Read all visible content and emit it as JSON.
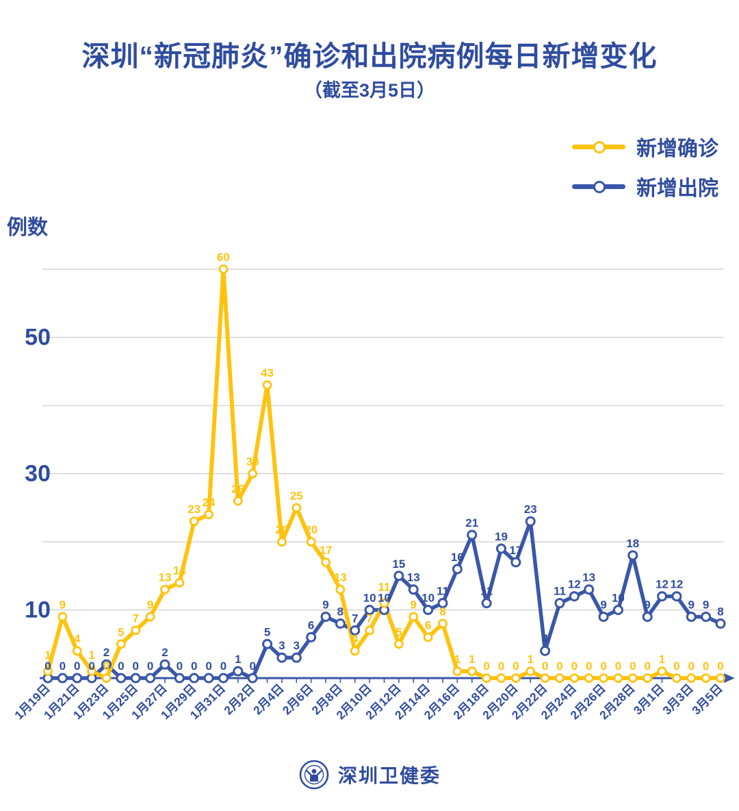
{
  "header": {
    "title": "深圳“新冠肺炎”确诊和出院病例每日新增变化",
    "subtitle": "（截至3月5日）"
  },
  "colors": {
    "accent_blue": "#2F4C9E",
    "line_blue": "#3A57A7",
    "line_yellow": "#FFC30F",
    "grid_gray": "#CCCCCC",
    "background": "#FFFFFF"
  },
  "chart_data": {
    "type": "line",
    "title": "深圳“新冠肺炎”确诊和出院病例每日新增变化",
    "subtitle": "（截至3月5日）",
    "ylabel": "例数",
    "xlabel": "",
    "ylim": [
      0,
      62
    ],
    "grid": "horizontal",
    "grid_values": [
      10,
      20,
      30,
      40,
      50,
      60
    ],
    "ytick_labels": [
      10,
      30,
      50
    ],
    "legend_position": "top-right",
    "x_tick_labels": [
      "1月19日",
      "1月21日",
      "1月23日",
      "1月25日",
      "1月27日",
      "1月29日",
      "1月31日",
      "2月2日",
      "2月4日",
      "2月6日",
      "2月8日",
      "2月10日",
      "2月12日",
      "2月14日",
      "2月16日",
      "2月18日",
      "2月20日",
      "2月22日",
      "2月24日",
      "2月26日",
      "2月28日",
      "3月1日",
      "3月3日",
      "3月5日"
    ],
    "x_label_every": 2,
    "points_count": 47,
    "series": [
      {
        "name": "新增确诊",
        "color": "#FFC30F",
        "values": [
          1,
          9,
          4,
          1,
          0,
          5,
          7,
          9,
          13,
          14,
          23,
          24,
          60,
          26,
          30,
          43,
          20,
          25,
          20,
          17,
          13,
          4,
          7,
          11,
          5,
          9,
          6,
          8,
          1,
          1,
          0,
          0,
          0,
          1,
          0,
          0,
          0,
          0,
          0,
          0,
          0,
          0,
          1,
          0,
          0,
          0,
          0
        ]
      },
      {
        "name": "新增出院",
        "color": "#3A57A7",
        "values": [
          0,
          0,
          0,
          0,
          2,
          0,
          0,
          0,
          2,
          0,
          0,
          0,
          0,
          1,
          0,
          5,
          3,
          3,
          6,
          9,
          8,
          7,
          10,
          10,
          15,
          13,
          10,
          11,
          16,
          21,
          11,
          19,
          17,
          23,
          4,
          11,
          12,
          13,
          9,
          10,
          18,
          9,
          12,
          12,
          9,
          9,
          8
        ]
      }
    ]
  },
  "footer": {
    "logo": "shenzhen-health-commission-logo",
    "text": "深圳卫健委"
  }
}
